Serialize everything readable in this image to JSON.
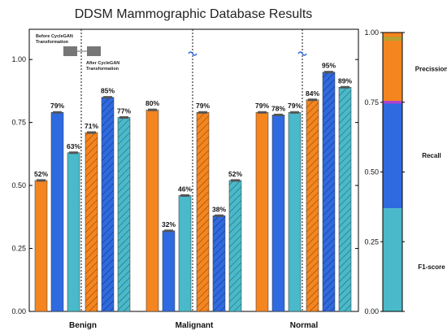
{
  "chart_data": {
    "type": "bar",
    "title": "DDSM Mammographic Database Results",
    "xlabel": "",
    "ylabel": "",
    "ylim": [
      0,
      1.12
    ],
    "yticks": [
      "0.00",
      "0.25",
      "0.50",
      "0.75",
      "1.00"
    ],
    "grid": false,
    "categories": [
      "Benign",
      "Malignant",
      "Normal"
    ],
    "metrics": [
      "Precission",
      "Recall",
      "F1-score"
    ],
    "series": [
      {
        "name": "Before CycleGAN Transformation",
        "pattern": "solid",
        "values": [
          [
            0.52,
            0.79,
            0.63
          ],
          [
            0.8,
            0.32,
            0.46
          ],
          [
            0.79,
            0.78,
            0.79
          ]
        ],
        "labels": [
          [
            "52%",
            "79%",
            "63%"
          ],
          [
            "80%",
            "32%",
            "46%"
          ],
          [
            "79%",
            "78%",
            "79%"
          ]
        ]
      },
      {
        "name": "After CycleGAN Transformation",
        "pattern": "hatched",
        "values": [
          [
            0.71,
            0.85,
            0.77
          ],
          [
            0.79,
            0.38,
            0.52
          ],
          [
            0.84,
            0.95,
            0.89
          ]
        ],
        "labels": [
          [
            "71%",
            "85%",
            "77%"
          ],
          [
            "79%",
            "38%",
            "52%"
          ],
          [
            "84%",
            "95%",
            "89%"
          ]
        ]
      }
    ],
    "annotations": {
      "before": [
        "Before CycleGAN",
        "Transformation"
      ],
      "after": [
        "After CycleGAN",
        "Transformation"
      ]
    },
    "legend": {
      "placement": "right",
      "entries": [
        {
          "name": "Precission",
          "color": "#f5851f"
        },
        {
          "name": "Recall",
          "color": "#2f6ae0"
        },
        {
          "name": "F1-score",
          "color": "#4ab9c9"
        }
      ]
    },
    "colors": {
      "Precission": "#f5851f",
      "Recall": "#2f6ae0",
      "F1-score": "#4ab9c9",
      "cap": "#555555"
    }
  }
}
